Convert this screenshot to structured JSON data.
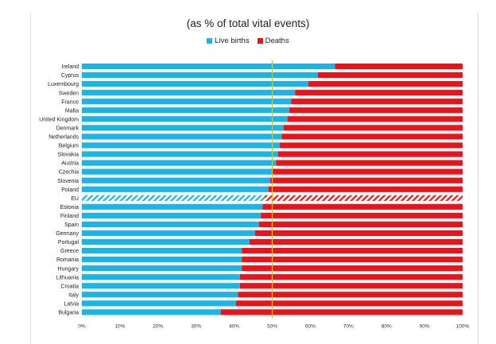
{
  "chart_data": {
    "type": "bar",
    "orientation": "horizontal",
    "stacked": true,
    "title": "(as % of total vital events)",
    "categories": [
      "Ireland",
      "Cyprus",
      "Luxembourg",
      "Sweden",
      "France",
      "Malta",
      "United Kingdom",
      "Denmark",
      "Netherlands",
      "Belgium",
      "Slovakia",
      "Austria",
      "Czechia",
      "Slovenia",
      "Poland",
      "EU",
      "Estonia",
      "Finland",
      "Spain",
      "Germany",
      "Portugal",
      "Greece",
      "Romania",
      "Hungary",
      "Lithuania",
      "Croatia",
      "Italy",
      "Latvia",
      "Bulgaria"
    ],
    "series": [
      {
        "name": "Live births",
        "color": "#1cb3e6",
        "values": [
          66.5,
          62.0,
          59.5,
          56.0,
          55.0,
          54.5,
          54.0,
          53.0,
          52.5,
          52.0,
          51.5,
          51.0,
          50.0,
          49.5,
          49.0,
          48.0,
          47.5,
          47.0,
          46.5,
          45.5,
          44.0,
          42.0,
          42.0,
          42.0,
          41.5,
          41.5,
          41.0,
          40.5,
          36.5
        ]
      },
      {
        "name": "Deaths",
        "color": "#e8141b",
        "values": [
          33.5,
          38.0,
          40.5,
          44.0,
          45.0,
          45.5,
          46.0,
          47.0,
          47.5,
          48.0,
          48.5,
          49.0,
          50.0,
          50.5,
          51.0,
          52.0,
          52.5,
          53.0,
          53.5,
          54.5,
          56.0,
          58.0,
          58.0,
          58.0,
          58.5,
          58.5,
          59.0,
          59.5,
          63.5
        ]
      }
    ],
    "highlight_category": "EU",
    "reference_line": 50,
    "reference_line_color": "#d9c800",
    "xlim": [
      0,
      100
    ],
    "xticks": [
      "0%",
      "10%",
      "20%",
      "30%",
      "40%",
      "50%",
      "60%",
      "70%",
      "80%",
      "90%",
      "100%"
    ],
    "grid": false,
    "legend_position": "top-center"
  }
}
